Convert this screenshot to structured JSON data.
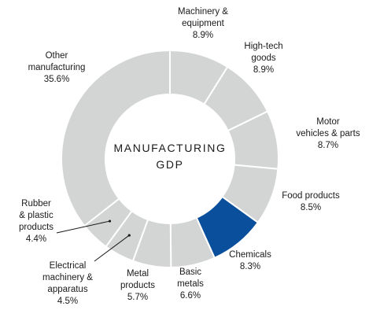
{
  "chart_data": {
    "type": "pie",
    "center_label": [
      "MANUFACTURING",
      "GDP"
    ],
    "colors": {
      "default": "#d3d4d4",
      "highlight": "#0a4f9c",
      "separator": "#ffffff",
      "leader": "#1a1a1a"
    },
    "highlighted": "Chemicals",
    "slices": [
      {
        "label_lines": [
          "Machinery &",
          "equipment"
        ],
        "value": 8.9,
        "value_label": "8.9%"
      },
      {
        "label_lines": [
          "High-tech",
          "goods"
        ],
        "value": 8.9,
        "value_label": "8.9%"
      },
      {
        "label_lines": [
          "Motor",
          "vehicles & parts"
        ],
        "value": 8.7,
        "value_label": "8.7%"
      },
      {
        "label_lines": [
          "Food products"
        ],
        "value": 8.5,
        "value_label": "8.5%"
      },
      {
        "label_lines": [
          "Chemicals"
        ],
        "value": 8.3,
        "value_label": "8.3%"
      },
      {
        "label_lines": [
          "Basic",
          "metals"
        ],
        "value": 6.6,
        "value_label": "6.6%"
      },
      {
        "label_lines": [
          "Metal",
          "products"
        ],
        "value": 5.7,
        "value_label": "5.7%"
      },
      {
        "label_lines": [
          "Electrical",
          "machinery &",
          "apparatus"
        ],
        "value": 4.5,
        "value_label": "4.5%"
      },
      {
        "label_lines": [
          "Rubber",
          "& plastic",
          "products"
        ],
        "value": 4.4,
        "value_label": "4.4%"
      },
      {
        "label_lines": [
          "Other",
          "manufacturing"
        ],
        "value": 35.6,
        "value_label": "35.6%"
      }
    ]
  }
}
